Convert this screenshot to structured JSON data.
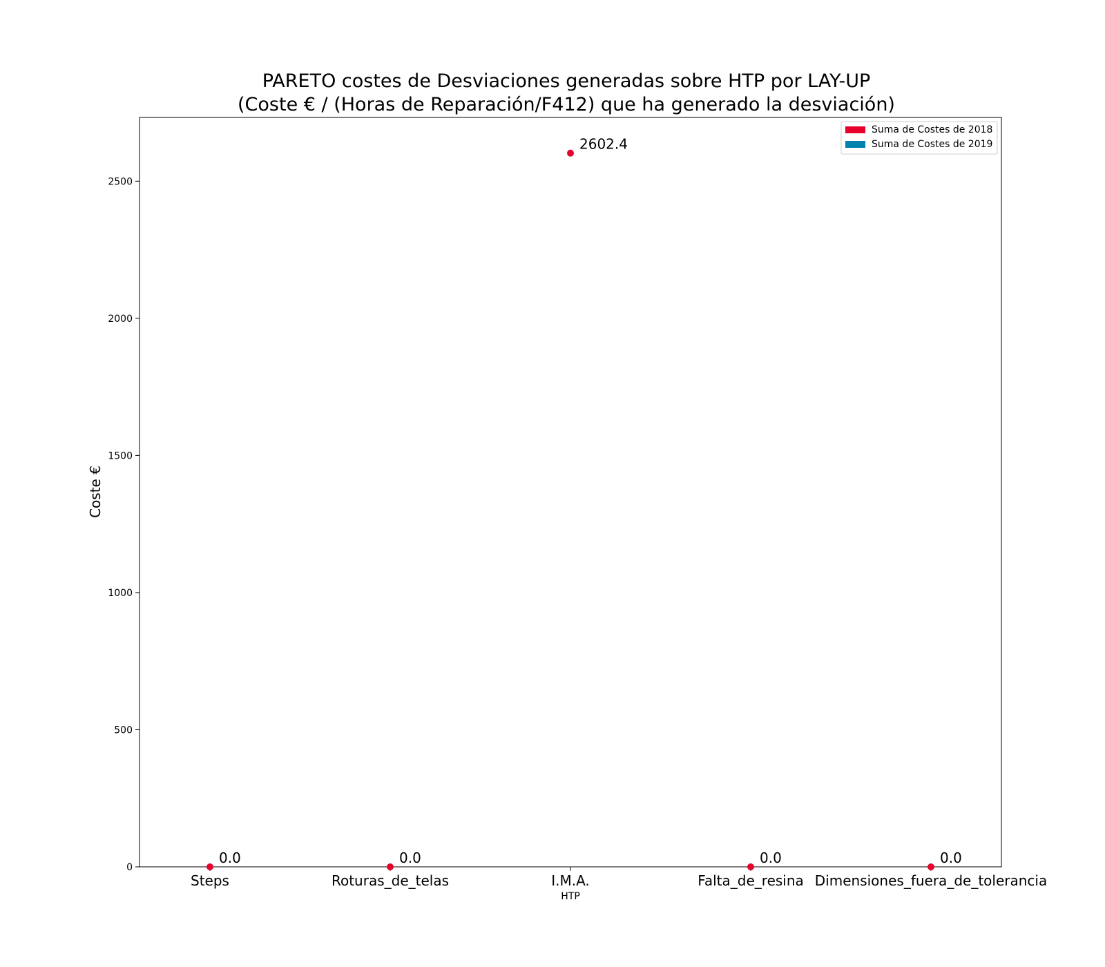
{
  "chart_data": {
    "type": "scatter",
    "title_line1": "PARETO costes de Desviaciones  generadas  sobre HTP por LAY-UP",
    "title_line2": "(Coste € / (Horas de Reparación/F412) que ha generado la desviación)",
    "xlabel": "HTP",
    "ylabel": "Coste €",
    "categories": [
      "Steps",
      "Roturas_de_telas",
      "I.M.A.",
      "Falta_de_resina",
      "Dimensiones_fuera_de_tolerancia"
    ],
    "series": [
      {
        "name": "Suma de Costes de 2018",
        "color": "#e8002d",
        "values": [
          0.0,
          0.0,
          2602.4,
          0.0,
          0.0
        ]
      },
      {
        "name": "Suma de Costes de 2019",
        "color": "#0082ad",
        "values": []
      }
    ],
    "data_labels": [
      "0.0",
      "0.0",
      "2602.4",
      "0.0",
      "0.0"
    ],
    "ylim": [
      0,
      2732.5
    ],
    "yticks": [
      0,
      500,
      1000,
      1500,
      2000,
      2500
    ],
    "ytick_labels": [
      "0",
      "500",
      "1000",
      "1500",
      "2000",
      "2500"
    ],
    "grid": false,
    "legend_position": "top-right"
  }
}
